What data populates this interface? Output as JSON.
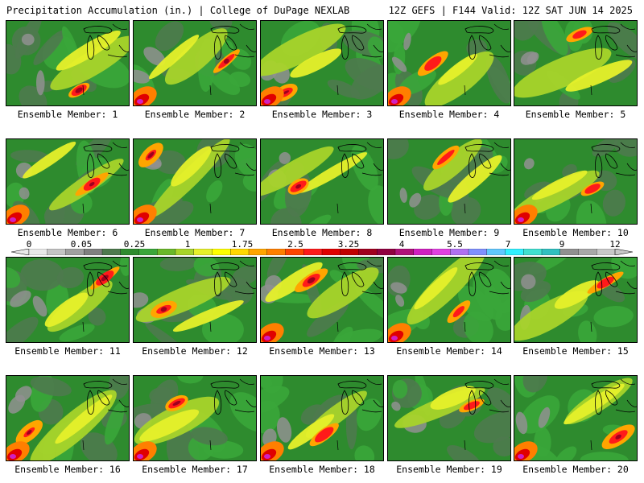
{
  "header": {
    "title_left": "Precipitation Accumulation (in.) | College of DuPage NEXLAB",
    "title_right": "12Z GEFS | F144 Valid: 12Z SAT JUN 14 2025"
  },
  "colorbar": {
    "labels": [
      "0",
      "0.05",
      "0.25",
      "1",
      "1.75",
      "2.5",
      "3.25",
      "4",
      "5.5",
      "7",
      "9",
      "12"
    ],
    "colors": [
      "#e8e8e8",
      "#c4c4c4",
      "#a0a0a0",
      "#808080",
      "#4e7a4e",
      "#2e8b2e",
      "#3aa63a",
      "#6ab82a",
      "#a8d42a",
      "#e6f02a",
      "#ffff00",
      "#ffd700",
      "#ffa500",
      "#ff7f00",
      "#ff4500",
      "#ff1a1a",
      "#e00000",
      "#c00000",
      "#a0001e",
      "#900040",
      "#b0107a",
      "#d020c0",
      "#e040e0",
      "#b070f0",
      "#8090ff",
      "#60c8ff",
      "#30f0ff",
      "#40e0d0",
      "#30c0c0",
      "#909090",
      "#a8a8a8",
      "#c8c8c8"
    ]
  },
  "panels": [
    {
      "label": "Ensemble Member: 1"
    },
    {
      "label": "Ensemble Member: 2"
    },
    {
      "label": "Ensemble Member: 3"
    },
    {
      "label": "Ensemble Member: 4"
    },
    {
      "label": "Ensemble Member: 5"
    },
    {
      "label": "Ensemble Member: 6"
    },
    {
      "label": "Ensemble Member: 7"
    },
    {
      "label": "Ensemble Member: 8"
    },
    {
      "label": "Ensemble Member: 9"
    },
    {
      "label": "Ensemble Member: 10"
    },
    {
      "label": "Ensemble Member: 11"
    },
    {
      "label": "Ensemble Member: 12"
    },
    {
      "label": "Ensemble Member: 13"
    },
    {
      "label": "Ensemble Member: 14"
    },
    {
      "label": "Ensemble Member: 15"
    },
    {
      "label": "Ensemble Member: 16"
    },
    {
      "label": "Ensemble Member: 17"
    },
    {
      "label": "Ensemble Member: 18"
    },
    {
      "label": "Ensemble Member: 19"
    },
    {
      "label": "Ensemble Member: 20"
    }
  ]
}
